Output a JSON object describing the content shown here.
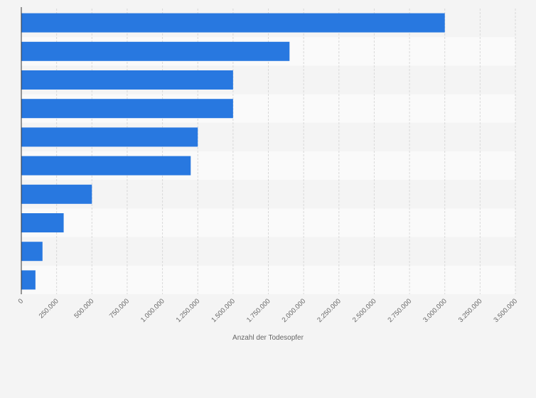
{
  "chart_data": {
    "type": "bar",
    "orientation": "horizontal",
    "title": "",
    "xlabel": "Anzahl der Todesopfer",
    "ylabel": "",
    "categories": [
      "",
      "",
      "",
      "",
      "",
      "",
      "",
      "",
      "",
      ""
    ],
    "values": [
      3000000,
      1900000,
      1500000,
      1500000,
      1250000,
      1200000,
      500000,
      300000,
      150000,
      100000
    ],
    "xlim": [
      0,
      3500000
    ],
    "ticks": [
      0,
      250000,
      500000,
      750000,
      1000000,
      1250000,
      1500000,
      1750000,
      2000000,
      2250000,
      2500000,
      2750000,
      3000000,
      3250000,
      3500000
    ],
    "tick_labels": [
      "0",
      "250.000",
      "500.000",
      "750.000",
      "1.000.000",
      "1.250.000",
      "1.500.000",
      "1.750.000",
      "2.000.000",
      "2.250.000",
      "2.500.000",
      "2.750.000",
      "3.000.000",
      "3.250.000",
      "3.500.000"
    ],
    "grid": true,
    "legend": "none",
    "colors": {
      "bar": "#2878e0",
      "band_light": "#fafafa",
      "band_dark": "#f4f4f4",
      "grid": "#d9d9d9",
      "axis": "#333333",
      "text": "#666666"
    }
  }
}
